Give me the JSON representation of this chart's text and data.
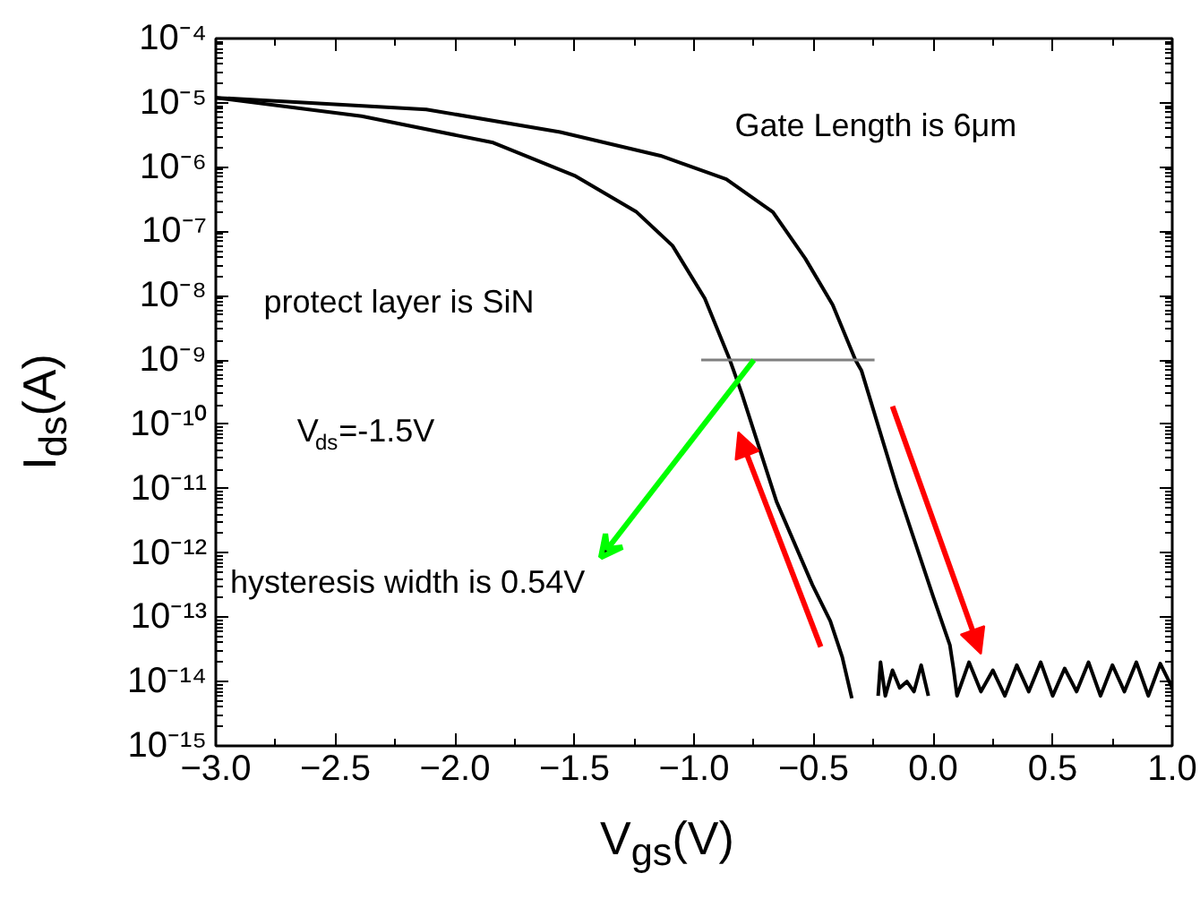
{
  "chart_data": {
    "type": "line",
    "xlabel": "V$_{gs}$(V)",
    "ylabel": "I$_{ds}$(A)",
    "log": "y",
    "grid": false,
    "marker": "none",
    "line_style": "solid",
    "xlim": [
      -3.0,
      1.0
    ],
    "ylim": [
      1e-15,
      0.0001
    ],
    "xticks": [
      {
        "value": -3.0,
        "label": "−3.0"
      },
      {
        "value": -2.5,
        "label": "−2.5"
      },
      {
        "value": -2.0,
        "label": "−2.0"
      },
      {
        "value": -1.5,
        "label": "−1.5"
      },
      {
        "value": -1.0,
        "label": "−1.0"
      },
      {
        "value": -0.5,
        "label": "−0.5"
      },
      {
        "value": 0.0,
        "label": "0.0"
      },
      {
        "value": 0.5,
        "label": "0.5"
      },
      {
        "value": 1.0,
        "label": "1.0"
      }
    ],
    "yticks": [
      {
        "value": 1e-15,
        "label": "10⁻¹⁵"
      },
      {
        "value": 1e-14,
        "label": "10⁻¹⁴"
      },
      {
        "value": 1e-13,
        "label": "10⁻¹³"
      },
      {
        "value": 1e-12,
        "label": "10⁻¹²"
      },
      {
        "value": 1e-11,
        "label": "10⁻¹¹"
      },
      {
        "value": 1e-10,
        "label": "10⁻¹⁰"
      },
      {
        "value": 1e-09,
        "label": "10⁻⁹"
      },
      {
        "value": 1e-08,
        "label": "10⁻⁸"
      },
      {
        "value": 1e-07,
        "label": "10⁻⁷"
      },
      {
        "value": 1e-06,
        "label": "10⁻⁶"
      },
      {
        "value": 1e-05,
        "label": "10⁻⁵"
      },
      {
        "value": 0.0001,
        "label": "10⁻⁴"
      }
    ],
    "series": [
      {
        "color": "#000000",
        "x": [
          -3.0,
          -2.39,
          -1.84,
          -1.5,
          -1.24,
          -1.09,
          -0.955,
          -0.85,
          -0.8,
          -0.655,
          -0.505,
          -0.43,
          -0.38,
          -0.34,
          -0.29,
          -0.23,
          -0.22,
          -0.2,
          -0.17,
          -0.14,
          -0.11,
          -0.08,
          -0.05,
          -0.02
        ],
        "values": [
          1.2e-05,
          6.2e-06,
          2.4e-06,
          7.4e-07,
          2e-07,
          6e-08,
          9.1e-09,
          1e-09,
          3e-10,
          6.3e-12,
          3.2e-13,
          8.7e-14,
          2.4e-14,
          5.5e-15,
          null,
          6e-15,
          2e-14,
          6e-15,
          1.5e-14,
          8e-15,
          1e-14,
          7e-15,
          1.8e-14,
          6e-15
        ]
      },
      {
        "color": "#000000",
        "x": [
          -3.0,
          -2.12,
          -1.56,
          -1.14,
          -0.865,
          -0.67,
          -0.535,
          -0.42,
          -0.325,
          -0.3,
          -0.15,
          0.0,
          0.07,
          0.085,
          0.1,
          0.15,
          0.2,
          0.25,
          0.3,
          0.35,
          0.4,
          0.45,
          0.5,
          0.55,
          0.6,
          0.65,
          0.7,
          0.75,
          0.8,
          0.85,
          0.9,
          0.95,
          1.0
        ],
        "values": [
          1.2e-05,
          7.9e-06,
          3.5e-06,
          1.5e-06,
          6.5e-07,
          2e-07,
          3.8e-08,
          7.2e-09,
          1e-09,
          6.9e-10,
          1e-11,
          2.1e-13,
          3.7e-14,
          1.6e-14,
          6e-15,
          2e-14,
          7e-15,
          1.5e-14,
          6e-15,
          1.8e-14,
          7e-15,
          2e-14,
          6e-15,
          1.6e-14,
          7e-15,
          2e-14,
          6e-15,
          1.8e-14,
          7e-15,
          2e-14,
          6e-15,
          1.9e-14,
          8e-15
        ]
      },
      {
        "color": "#808080",
        "x": [
          -0.97,
          -0.245
        ],
        "values": [
          1e-09,
          1e-09
        ]
      }
    ],
    "annotations": [
      "Gate Length is 6μm",
      "protect layer is SiN",
      "V$_{ds}$=-1.5V",
      "hysteresis width is 0.54V"
    ]
  }
}
